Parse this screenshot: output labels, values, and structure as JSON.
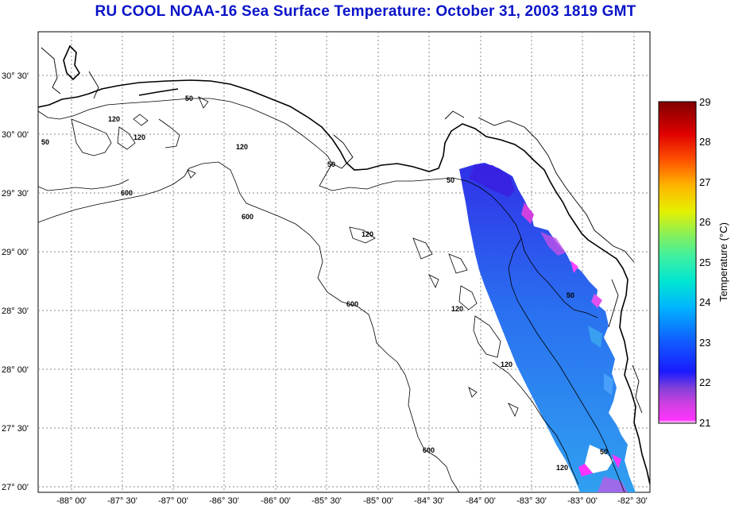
{
  "title": "RU COOL  NOAA-16  Sea Surface Temperature:  October 31, 2003 1819 GMT",
  "map": {
    "lat_labels": [
      "30° 30'",
      "30° 00'",
      "29° 30'",
      "29° 00'",
      "28° 30'",
      "28° 00'",
      "27° 30'",
      "27° 00'"
    ],
    "lon_labels": [
      "-88° 00'",
      "-87° 30'",
      "-87° 00'",
      "-86° 30'",
      "-86° 00'",
      "-85° 30'",
      "-85° 00'",
      "-84° 30'",
      "-84° 00'",
      "-83° 30'",
      "-83° 00'",
      "-82° 30'"
    ],
    "contour_labels": [
      "50",
      "120",
      "600"
    ],
    "grid": true
  },
  "colorbar": {
    "label": "Temperature (°C)",
    "ticks": [
      "29",
      "28",
      "27",
      "26",
      "25",
      "24",
      "23",
      "22",
      "21"
    ],
    "min": 21,
    "max": 29
  },
  "colors": {
    "title": "#0a14c8",
    "grid": "#888888"
  }
}
